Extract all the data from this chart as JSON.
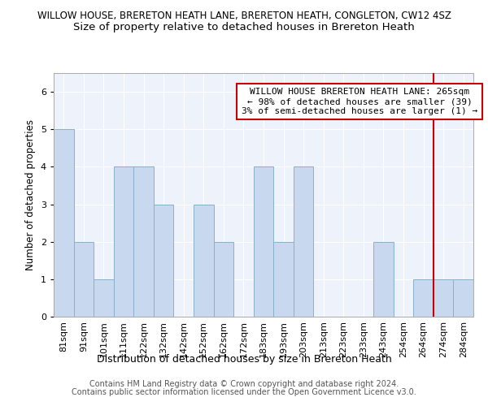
{
  "title1": "WILLOW HOUSE, BRERETON HEATH LANE, BRERETON HEATH, CONGLETON, CW12 4SZ",
  "title2": "Size of property relative to detached houses in Brereton Heath",
  "xlabel": "Distribution of detached houses by size in Brereton Heath",
  "ylabel": "Number of detached properties",
  "footer1": "Contains HM Land Registry data © Crown copyright and database right 2024.",
  "footer2": "Contains public sector information licensed under the Open Government Licence v3.0.",
  "annotation_line1": "WILLOW HOUSE BRERETON HEATH LANE: 265sqm",
  "annotation_line2": "← 98% of detached houses are smaller (39)",
  "annotation_line3": "3% of semi-detached houses are larger (1) →",
  "bins": [
    "81sqm",
    "91sqm",
    "101sqm",
    "111sqm",
    "122sqm",
    "132sqm",
    "142sqm",
    "152sqm",
    "162sqm",
    "172sqm",
    "183sqm",
    "193sqm",
    "203sqm",
    "213sqm",
    "223sqm",
    "233sqm",
    "243sqm",
    "254sqm",
    "264sqm",
    "274sqm",
    "284sqm"
  ],
  "values": [
    5,
    2,
    1,
    4,
    4,
    3,
    0,
    3,
    2,
    0,
    4,
    2,
    4,
    0,
    0,
    0,
    2,
    0,
    1,
    1,
    1
  ],
  "bar_color": "#c8d8ee",
  "bar_edge_color": "#8ab0cc",
  "line_color": "#cc0000",
  "red_line_index": 18,
  "ylim": [
    0,
    6.5
  ],
  "yticks": [
    0,
    1,
    2,
    3,
    4,
    5,
    6
  ],
  "background_color": "#eef2fb",
  "title1_fontsize": 8.5,
  "title2_fontsize": 9.5,
  "xlabel_fontsize": 9,
  "ylabel_fontsize": 8.5,
  "tick_fontsize": 8,
  "annotation_fontsize": 8,
  "footer_fontsize": 7
}
